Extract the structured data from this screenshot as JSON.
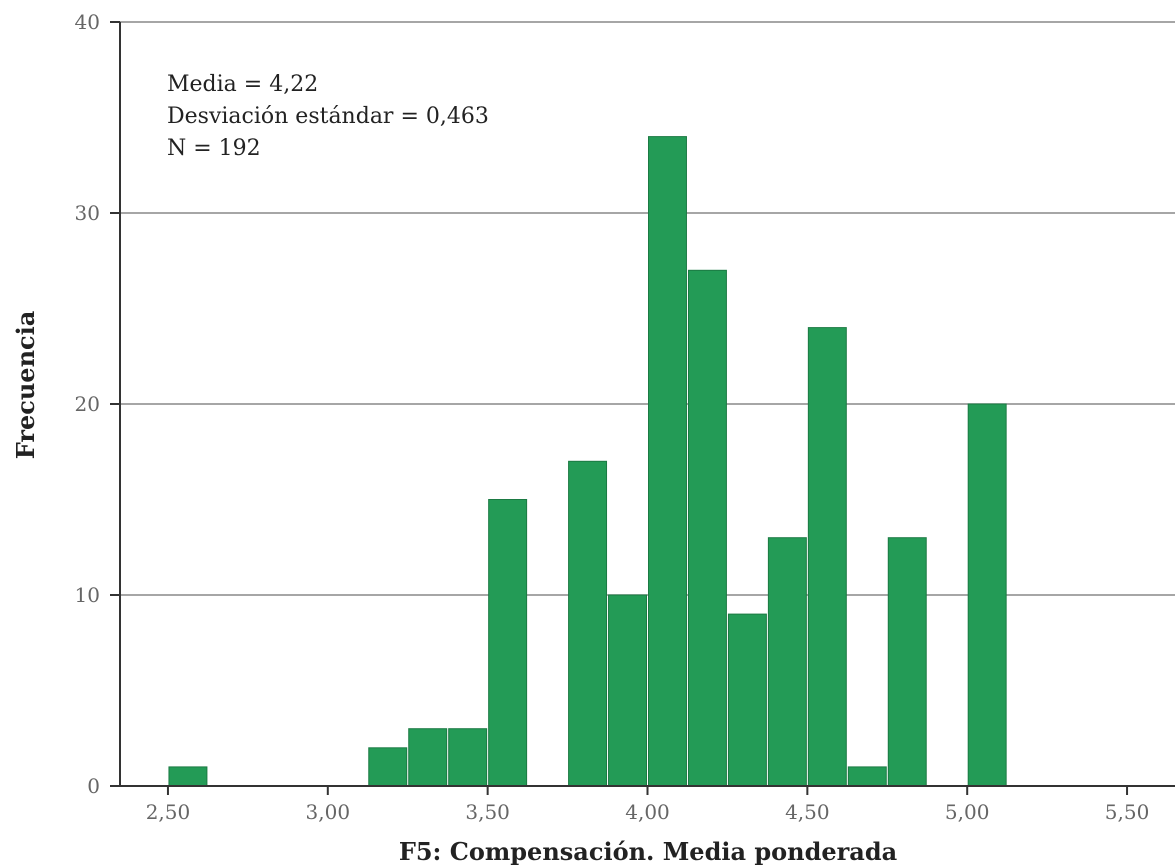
{
  "chart_data": {
    "type": "bar",
    "subtype": "histogram",
    "xlabel": "F5: Compensación. Media ponderada",
    "ylabel": "Frecuencia",
    "xlim": [
      2.35,
      5.65
    ],
    "ylim": [
      0,
      40
    ],
    "grid": "horizontal",
    "x_ticks": [
      2.5,
      3.0,
      3.5,
      4.0,
      4.5,
      5.0,
      5.5
    ],
    "x_tick_labels": [
      "2,50",
      "3,00",
      "3,50",
      "4,00",
      "4,50",
      "5,00",
      "5,50"
    ],
    "y_ticks": [
      0,
      10,
      20,
      30,
      40
    ],
    "y_tick_labels": [
      "0",
      "10",
      "20",
      "30",
      "40"
    ],
    "bar_color": "#239b56",
    "bin_width": 0.125,
    "bins": [
      {
        "start": 2.5,
        "value": 1
      },
      {
        "start": 3.125,
        "value": 2
      },
      {
        "start": 3.25,
        "value": 3
      },
      {
        "start": 3.375,
        "value": 3
      },
      {
        "start": 3.5,
        "value": 15
      },
      {
        "start": 3.75,
        "value": 17
      },
      {
        "start": 3.875,
        "value": 10
      },
      {
        "start": 4.0,
        "value": 34
      },
      {
        "start": 4.125,
        "value": 27
      },
      {
        "start": 4.25,
        "value": 9
      },
      {
        "start": 4.375,
        "value": 13
      },
      {
        "start": 4.5,
        "value": 24
      },
      {
        "start": 4.625,
        "value": 1
      },
      {
        "start": 4.75,
        "value": 13
      },
      {
        "start": 5.0,
        "value": 20
      }
    ],
    "annotations": [
      "Media = 4,22",
      "Desviación estándar = 0,463",
      "N = 192"
    ]
  }
}
